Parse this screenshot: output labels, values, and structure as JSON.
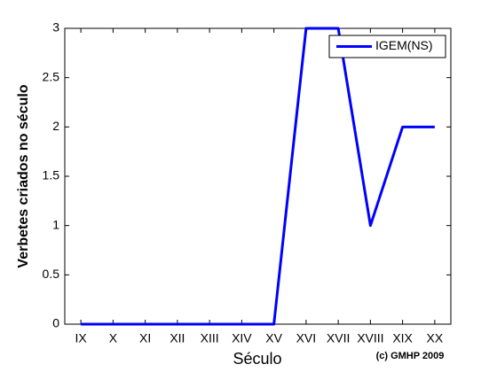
{
  "chart_data": {
    "type": "line",
    "x_label": "Século",
    "y_label": "Verbetes criados no século",
    "annotation": "(c) GMHP 2009",
    "categories": [
      "IX",
      "X",
      "XI",
      "XII",
      "XIII",
      "XIV",
      "XV",
      "XVI",
      "XVII",
      "XVIII",
      "XIX",
      "XX"
    ],
    "series": [
      {
        "name": "IGEM(NS)",
        "color": "#0000ff",
        "values": [
          0,
          0,
          0,
          0,
          0,
          0,
          0,
          3,
          3,
          1,
          2,
          2
        ]
      }
    ],
    "ylim": [
      0,
      3
    ],
    "yticks": [
      0,
      0.5,
      1,
      1.5,
      2,
      2.5,
      3
    ],
    "grid": false,
    "legend": "upper right"
  }
}
